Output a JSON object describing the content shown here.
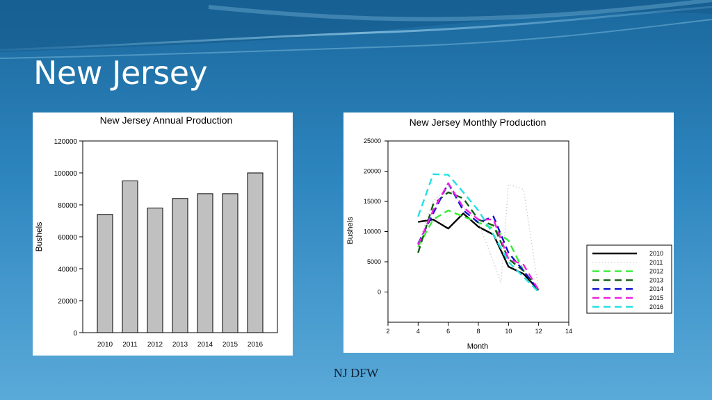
{
  "slide": {
    "title": "New Jersey",
    "footer": "NJ DFW",
    "colors": {
      "bg_top": "#1c6ea2",
      "bg_bottom": "#5aa9d8"
    }
  },
  "chart_data": [
    {
      "type": "bar",
      "title": "New Jersey Annual Production",
      "xlabel": "",
      "ylabel": "Bushels",
      "categories": [
        "2010",
        "2011",
        "2012",
        "2013",
        "2014",
        "2015",
        "2016"
      ],
      "values": [
        74000,
        95000,
        78000,
        84000,
        87000,
        87000,
        100000
      ],
      "ylim": [
        0,
        120000
      ],
      "yticks": [
        0,
        20000,
        40000,
        60000,
        80000,
        100000,
        120000
      ],
      "bar_color": "#c0c0c0",
      "grid": false
    },
    {
      "type": "line",
      "title": "New Jersey Monthly Production",
      "xlabel": "Month",
      "ylabel": "Bushels",
      "xlim": [
        2,
        14
      ],
      "ylim": [
        -5000,
        25000
      ],
      "xticks": [
        2,
        4,
        6,
        8,
        10,
        12,
        14
      ],
      "yticks": [
        0,
        5000,
        10000,
        15000,
        20000,
        25000
      ],
      "legend": "right",
      "grid": false,
      "series": [
        {
          "name": "2010",
          "color": "#000000",
          "dash": "solid",
          "x": [
            4,
            5,
            6,
            7,
            8,
            9,
            10,
            11,
            12
          ],
          "y": [
            11600,
            12000,
            10500,
            13000,
            10800,
            9500,
            4200,
            3000,
            300
          ]
        },
        {
          "name": "2011",
          "color": "#c8c8c8",
          "dash": "dotted",
          "x": [
            4,
            5,
            6,
            7,
            8,
            9,
            9.5,
            10,
            11,
            12
          ],
          "y": [
            8000,
            15000,
            17500,
            14000,
            11500,
            5000,
            1500,
            17800,
            17000,
            300
          ]
        },
        {
          "name": "2012",
          "color": "#33ee33",
          "dash": "dashed",
          "x": [
            4,
            5,
            6,
            7,
            8,
            9,
            10,
            11,
            12
          ],
          "y": [
            7500,
            12000,
            13500,
            12500,
            11500,
            10500,
            8500,
            3500,
            300
          ]
        },
        {
          "name": "2013",
          "color": "#0d5c0d",
          "dash": "dashed",
          "x": [
            4,
            5,
            6,
            7,
            8,
            9,
            10,
            11,
            12
          ],
          "y": [
            6500,
            14500,
            16500,
            15500,
            12000,
            11000,
            5500,
            3500,
            300
          ]
        },
        {
          "name": "2014",
          "color": "#1010cc",
          "dash": "dashed",
          "x": [
            4,
            5,
            6,
            7,
            8,
            9,
            10,
            11,
            12
          ],
          "y": [
            8000,
            13000,
            18000,
            13500,
            11500,
            12500,
            6500,
            3500,
            300
          ]
        },
        {
          "name": "2015",
          "color": "#ee22dd",
          "dash": "dashed",
          "x": [
            4,
            5,
            6,
            7,
            8,
            9,
            10,
            11,
            12
          ],
          "y": [
            7800,
            13500,
            18000,
            14000,
            12000,
            12000,
            5500,
            4500,
            300
          ]
        },
        {
          "name": "2016",
          "color": "#22e0e0",
          "dash": "dashed",
          "x": [
            4,
            5,
            6,
            7,
            8,
            9,
            10,
            11,
            12
          ],
          "y": [
            12500,
            19500,
            19400,
            16500,
            13500,
            9500,
            5000,
            2500,
            0
          ]
        }
      ]
    }
  ]
}
